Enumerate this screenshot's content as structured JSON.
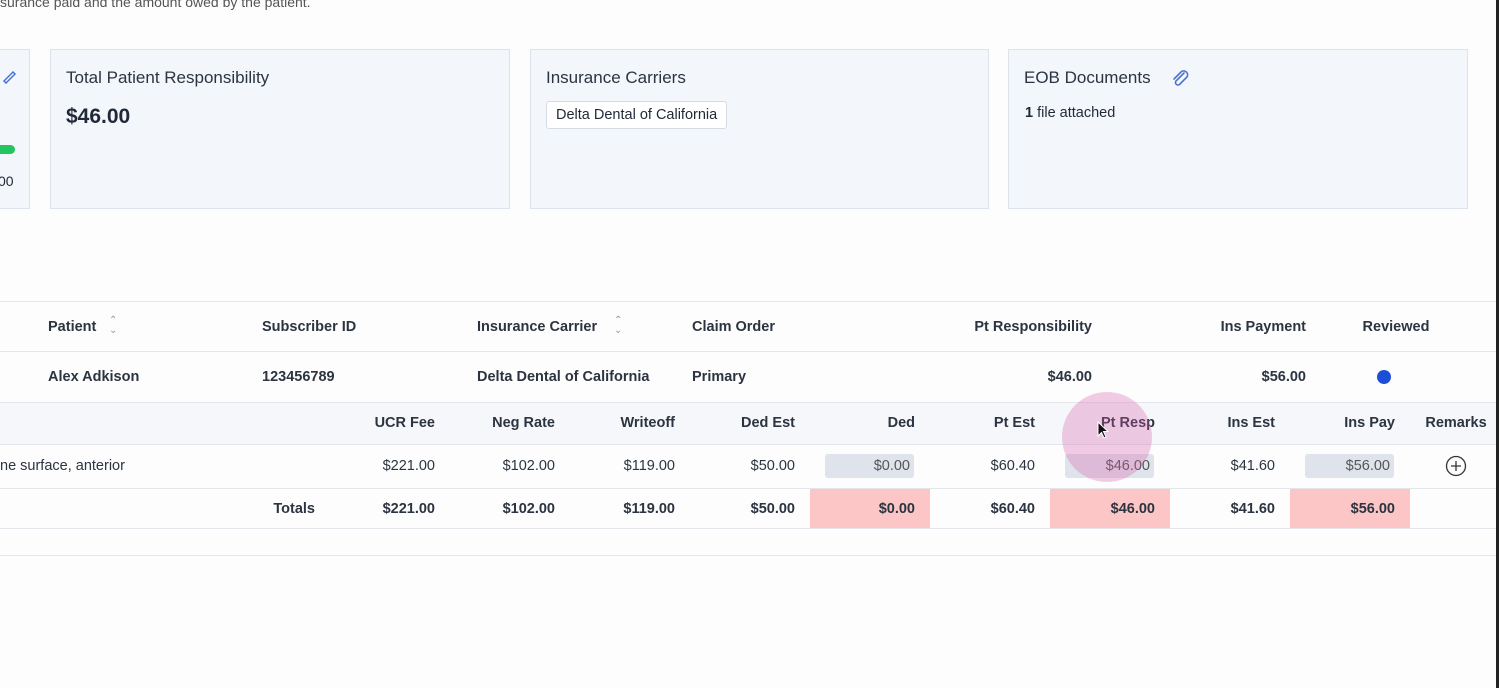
{
  "intro": "surance paid and the amount owed by the patient.",
  "cards": [
    {
      "value": "00"
    },
    {
      "title": "Total Patient Responsibility",
      "value": "$46.00"
    },
    {
      "title": "Insurance Carriers",
      "chip": "Delta Dental of California"
    },
    {
      "title": "EOB Documents",
      "count": "1",
      "text": "file attached"
    }
  ],
  "claims": {
    "headers": [
      "Patient",
      "Subscriber ID",
      "Insurance Carrier",
      "Claim Order",
      "Pt Responsibility",
      "Ins Payment",
      "Reviewed"
    ],
    "rows": [
      [
        "Alex Adkison",
        "123456789",
        "Delta Dental of California",
        "Primary",
        "$46.00",
        "$56.00"
      ]
    ]
  },
  "procedures": {
    "headers": [
      "UCR Fee",
      "Neg Rate",
      "Writeoff",
      "Ded Est",
      "Ded",
      "Pt Est",
      "Pt Resp",
      "Ins Est",
      "Ins Pay",
      "Remarks"
    ],
    "rows": [
      {
        "description": "ne surface, anterior",
        "cells": [
          "$221.00",
          "$102.00",
          "$119.00",
          "$50.00",
          "$0.00",
          "$60.40",
          "$46.00",
          "$41.60",
          "$56.00"
        ]
      }
    ],
    "totals": {
      "label": "Totals",
      "cells": [
        "$221.00",
        "$102.00",
        "$119.00",
        "$50.00",
        "$0.00",
        "$60.40",
        "$46.00",
        "$41.60",
        "$56.00"
      ]
    }
  }
}
